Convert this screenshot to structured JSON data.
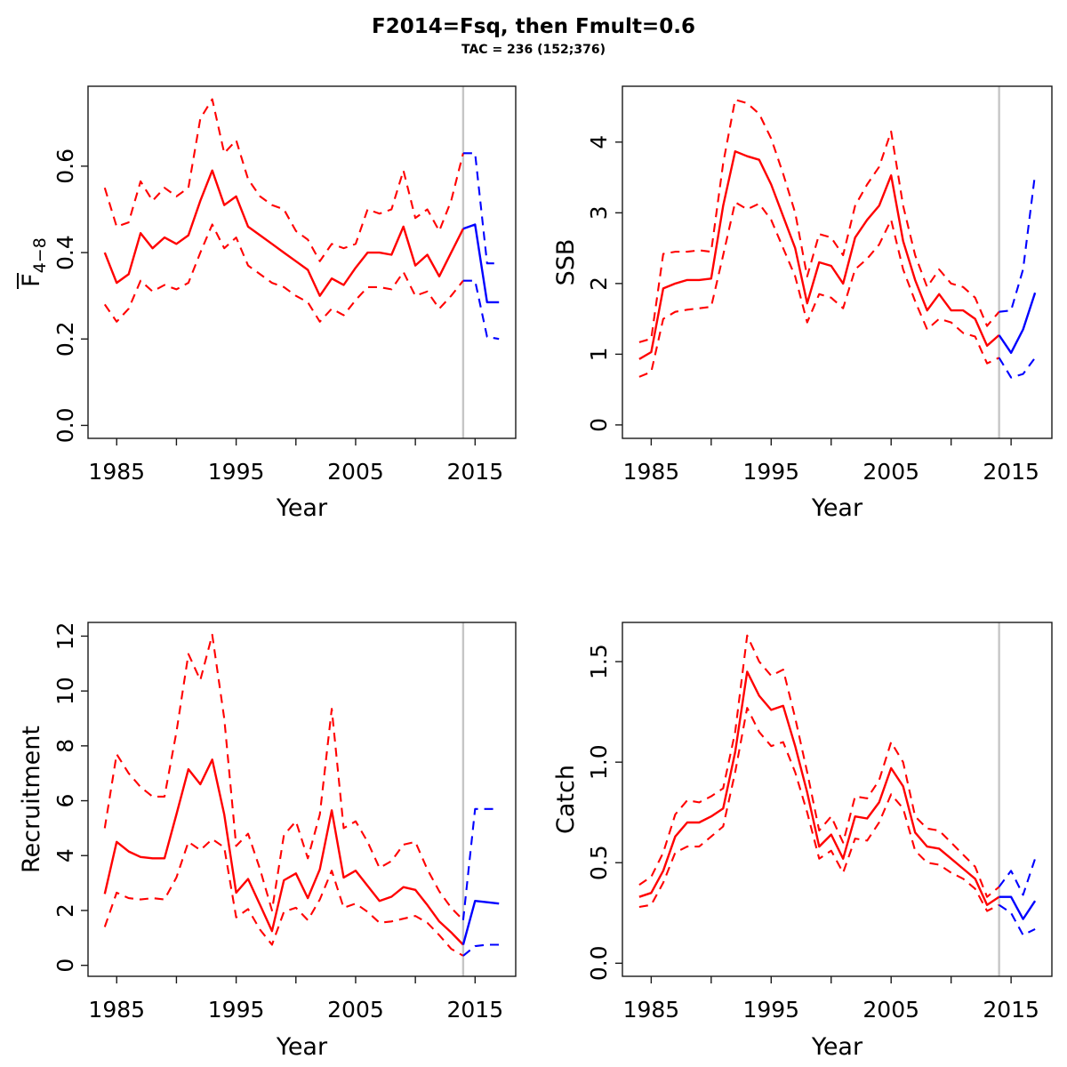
{
  "header": {
    "title": "F2014=Fsq, then Fmult=0.6",
    "subtitle": "TAC = 236 (152;376)"
  },
  "colors": {
    "historical": "#ff0000",
    "projection": "#0000ff",
    "divider": "#c6c6c6",
    "axis": "#1a1a1a"
  },
  "x_axis": {
    "label": "Year",
    "ticks": [
      1985,
      1990,
      1995,
      2000,
      2005,
      2010,
      2015
    ],
    "labeled": [
      1985,
      1995,
      2005,
      2015
    ],
    "divider_year": 2014,
    "xlim": [
      1982.6,
      2018.4
    ]
  },
  "chart_data": [
    {
      "id": "fbar",
      "type": "line",
      "ylabel": {
        "text": "F",
        "subscript": "4−8",
        "overbar": true
      },
      "ylim": [
        -0.03,
        0.785
      ],
      "yticks": [
        0.0,
        0.2,
        0.4,
        0.6
      ],
      "ytick_labels": [
        "0.0",
        "0.2",
        "0.4",
        "0.6"
      ],
      "years_hist": {
        "from": 1984,
        "to": 2014
      },
      "years_proj": {
        "from": 2014,
        "to": 2017
      },
      "series": [
        {
          "name": "median-historical",
          "period": "historical",
          "style": "solid",
          "values": [
            0.4,
            0.33,
            0.35,
            0.445,
            0.41,
            0.435,
            0.42,
            0.44,
            0.52,
            0.59,
            0.51,
            0.53,
            0.46,
            0.44,
            0.42,
            0.4,
            0.38,
            0.36,
            0.3,
            0.34,
            0.325,
            0.365,
            0.4,
            0.4,
            0.395,
            0.46,
            0.37,
            0.395,
            0.345,
            0.4,
            0.455
          ]
        },
        {
          "name": "upper-ci-historical",
          "period": "historical",
          "style": "dashed",
          "values": [
            0.55,
            0.46,
            0.47,
            0.565,
            0.52,
            0.55,
            0.53,
            0.55,
            0.71,
            0.755,
            0.63,
            0.66,
            0.57,
            0.53,
            0.51,
            0.5,
            0.45,
            0.43,
            0.38,
            0.42,
            0.41,
            0.42,
            0.5,
            0.49,
            0.5,
            0.59,
            0.48,
            0.5,
            0.45,
            0.52,
            0.63
          ]
        },
        {
          "name": "lower-ci-historical",
          "period": "historical",
          "style": "dashed",
          "values": [
            0.28,
            0.24,
            0.27,
            0.335,
            0.31,
            0.325,
            0.315,
            0.33,
            0.4,
            0.465,
            0.41,
            0.435,
            0.37,
            0.35,
            0.33,
            0.32,
            0.3,
            0.285,
            0.24,
            0.27,
            0.255,
            0.29,
            0.32,
            0.32,
            0.315,
            0.355,
            0.3,
            0.31,
            0.27,
            0.3,
            0.335
          ]
        },
        {
          "name": "median-projection",
          "period": "projection",
          "style": "solid",
          "values": [
            0.455,
            0.465,
            0.285,
            0.285
          ]
        },
        {
          "name": "upper-ci-projection",
          "period": "projection",
          "style": "dashed",
          "values": [
            0.63,
            0.63,
            0.375,
            0.375
          ]
        },
        {
          "name": "lower-ci-projection",
          "period": "projection",
          "style": "dashed",
          "values": [
            0.335,
            0.335,
            0.205,
            0.2
          ]
        }
      ]
    },
    {
      "id": "ssb",
      "type": "line",
      "ylabel": {
        "text": "SSB"
      },
      "ylim": [
        -0.19,
        4.79
      ],
      "yticks": [
        0,
        1,
        2,
        3,
        4
      ],
      "ytick_labels": [
        "0",
        "1",
        "2",
        "3",
        "4"
      ],
      "years_hist": {
        "from": 1984,
        "to": 2014
      },
      "years_proj": {
        "from": 2014,
        "to": 2017
      },
      "series": [
        {
          "name": "median-historical",
          "period": "historical",
          "style": "solid",
          "values": [
            0.93,
            1.03,
            1.93,
            2.0,
            2.05,
            2.05,
            2.07,
            3.1,
            3.87,
            3.8,
            3.75,
            3.4,
            2.95,
            2.5,
            1.72,
            2.3,
            2.25,
            2.0,
            2.65,
            2.9,
            3.1,
            3.53,
            2.6,
            2.05,
            1.62,
            1.85,
            1.62,
            1.62,
            1.5,
            1.12,
            1.27
          ]
        },
        {
          "name": "upper-ci-historical",
          "period": "historical",
          "style": "dashed",
          "values": [
            1.17,
            1.22,
            2.42,
            2.45,
            2.45,
            2.47,
            2.45,
            3.7,
            4.6,
            4.55,
            4.4,
            4.05,
            3.55,
            3.0,
            2.1,
            2.7,
            2.65,
            2.4,
            3.1,
            3.4,
            3.65,
            4.15,
            3.1,
            2.4,
            1.95,
            2.2,
            2.0,
            1.95,
            1.8,
            1.4,
            1.6
          ]
        },
        {
          "name": "lower-ci-historical",
          "period": "historical",
          "style": "dashed",
          "values": [
            0.68,
            0.75,
            1.5,
            1.6,
            1.63,
            1.65,
            1.67,
            2.4,
            3.15,
            3.05,
            3.13,
            2.9,
            2.5,
            2.1,
            1.45,
            1.85,
            1.8,
            1.65,
            2.2,
            2.35,
            2.55,
            2.9,
            2.2,
            1.75,
            1.35,
            1.5,
            1.45,
            1.3,
            1.25,
            0.87,
            0.95
          ]
        },
        {
          "name": "median-projection",
          "period": "projection",
          "style": "solid",
          "values": [
            1.27,
            1.02,
            1.35,
            1.87
          ]
        },
        {
          "name": "upper-ci-projection",
          "period": "projection",
          "style": "dashed",
          "values": [
            1.6,
            1.62,
            2.2,
            3.55
          ]
        },
        {
          "name": "lower-ci-projection",
          "period": "projection",
          "style": "dashed",
          "values": [
            0.95,
            0.67,
            0.72,
            0.95
          ]
        }
      ]
    },
    {
      "id": "recruitment",
      "type": "line",
      "ylabel": {
        "text": "Recruitment"
      },
      "ylim": [
        -0.4,
        12.5
      ],
      "yticks": [
        0,
        2,
        4,
        6,
        8,
        10,
        12
      ],
      "ytick_labels": [
        "0",
        "2",
        "4",
        "6",
        "8",
        "10",
        "12"
      ],
      "years_hist": {
        "from": 1984,
        "to": 2014
      },
      "years_proj": {
        "from": 2014,
        "to": 2017
      },
      "series": [
        {
          "name": "median-historical",
          "period": "historical",
          "style": "solid",
          "values": [
            2.6,
            4.5,
            4.15,
            3.95,
            3.9,
            3.9,
            5.5,
            7.15,
            6.6,
            7.5,
            5.5,
            2.65,
            3.15,
            2.2,
            1.25,
            3.1,
            3.35,
            2.45,
            3.5,
            5.65,
            3.2,
            3.45,
            2.9,
            2.35,
            2.5,
            2.85,
            2.75,
            2.2,
            1.6,
            1.2,
            0.75
          ]
        },
        {
          "name": "upper-ci-historical",
          "period": "historical",
          "style": "dashed",
          "values": [
            5.0,
            7.7,
            7.0,
            6.5,
            6.15,
            6.15,
            8.5,
            11.35,
            10.4,
            12.05,
            9.0,
            4.35,
            4.8,
            3.5,
            2.0,
            4.75,
            5.25,
            3.9,
            5.5,
            9.35,
            5.0,
            5.25,
            4.5,
            3.55,
            3.8,
            4.4,
            4.5,
            3.5,
            2.7,
            2.1,
            1.65
          ]
        },
        {
          "name": "lower-ci-historical",
          "period": "historical",
          "style": "dashed",
          "values": [
            1.4,
            2.65,
            2.45,
            2.4,
            2.45,
            2.4,
            3.2,
            4.5,
            4.2,
            4.6,
            4.3,
            1.75,
            2.05,
            1.3,
            0.75,
            1.95,
            2.1,
            1.65,
            2.4,
            3.45,
            2.1,
            2.25,
            1.95,
            1.55,
            1.6,
            1.7,
            1.8,
            1.55,
            1.1,
            0.6,
            0.35
          ]
        },
        {
          "name": "median-projection",
          "period": "projection",
          "style": "solid",
          "values": [
            0.75,
            2.35,
            2.3,
            2.25
          ]
        },
        {
          "name": "upper-ci-projection",
          "period": "projection",
          "style": "dashed",
          "values": [
            1.65,
            5.7,
            5.7,
            5.7
          ]
        },
        {
          "name": "lower-ci-projection",
          "period": "projection",
          "style": "dashed",
          "values": [
            0.35,
            0.7,
            0.75,
            0.75
          ]
        }
      ]
    },
    {
      "id": "catch",
      "type": "line",
      "ylabel": {
        "text": "Catch"
      },
      "ylim": [
        -0.065,
        1.695
      ],
      "yticks": [
        0.0,
        0.5,
        1.0,
        1.5
      ],
      "ytick_labels": [
        "0.0",
        "0.5",
        "1.0",
        "1.5"
      ],
      "years_hist": {
        "from": 1984,
        "to": 2014
      },
      "years_proj": {
        "from": 2014,
        "to": 2017
      },
      "series": [
        {
          "name": "median-historical",
          "period": "historical",
          "style": "solid",
          "values": [
            0.33,
            0.35,
            0.46,
            0.63,
            0.7,
            0.7,
            0.73,
            0.77,
            1.05,
            1.45,
            1.33,
            1.26,
            1.28,
            1.08,
            0.85,
            0.58,
            0.64,
            0.52,
            0.73,
            0.72,
            0.8,
            0.97,
            0.88,
            0.65,
            0.58,
            0.57,
            0.52,
            0.47,
            0.42,
            0.29,
            0.33
          ]
        },
        {
          "name": "upper-ci-historical",
          "period": "historical",
          "style": "dashed",
          "values": [
            0.39,
            0.43,
            0.55,
            0.74,
            0.81,
            0.8,
            0.83,
            0.87,
            1.15,
            1.63,
            1.5,
            1.43,
            1.46,
            1.22,
            0.95,
            0.66,
            0.73,
            0.6,
            0.83,
            0.82,
            0.91,
            1.1,
            1.0,
            0.73,
            0.67,
            0.66,
            0.6,
            0.54,
            0.48,
            0.33,
            0.38
          ]
        },
        {
          "name": "lower-ci-historical",
          "period": "historical",
          "style": "dashed",
          "values": [
            0.28,
            0.29,
            0.4,
            0.55,
            0.58,
            0.58,
            0.63,
            0.68,
            0.95,
            1.27,
            1.15,
            1.08,
            1.1,
            0.95,
            0.75,
            0.52,
            0.56,
            0.45,
            0.62,
            0.61,
            0.7,
            0.84,
            0.77,
            0.56,
            0.5,
            0.49,
            0.45,
            0.42,
            0.37,
            0.26,
            0.29
          ]
        },
        {
          "name": "median-projection",
          "period": "projection",
          "style": "solid",
          "values": [
            0.33,
            0.33,
            0.22,
            0.31
          ]
        },
        {
          "name": "upper-ci-projection",
          "period": "projection",
          "style": "dashed",
          "values": [
            0.38,
            0.46,
            0.34,
            0.52
          ]
        },
        {
          "name": "lower-ci-projection",
          "period": "projection",
          "style": "dashed",
          "values": [
            0.29,
            0.25,
            0.14,
            0.17
          ]
        }
      ]
    }
  ]
}
